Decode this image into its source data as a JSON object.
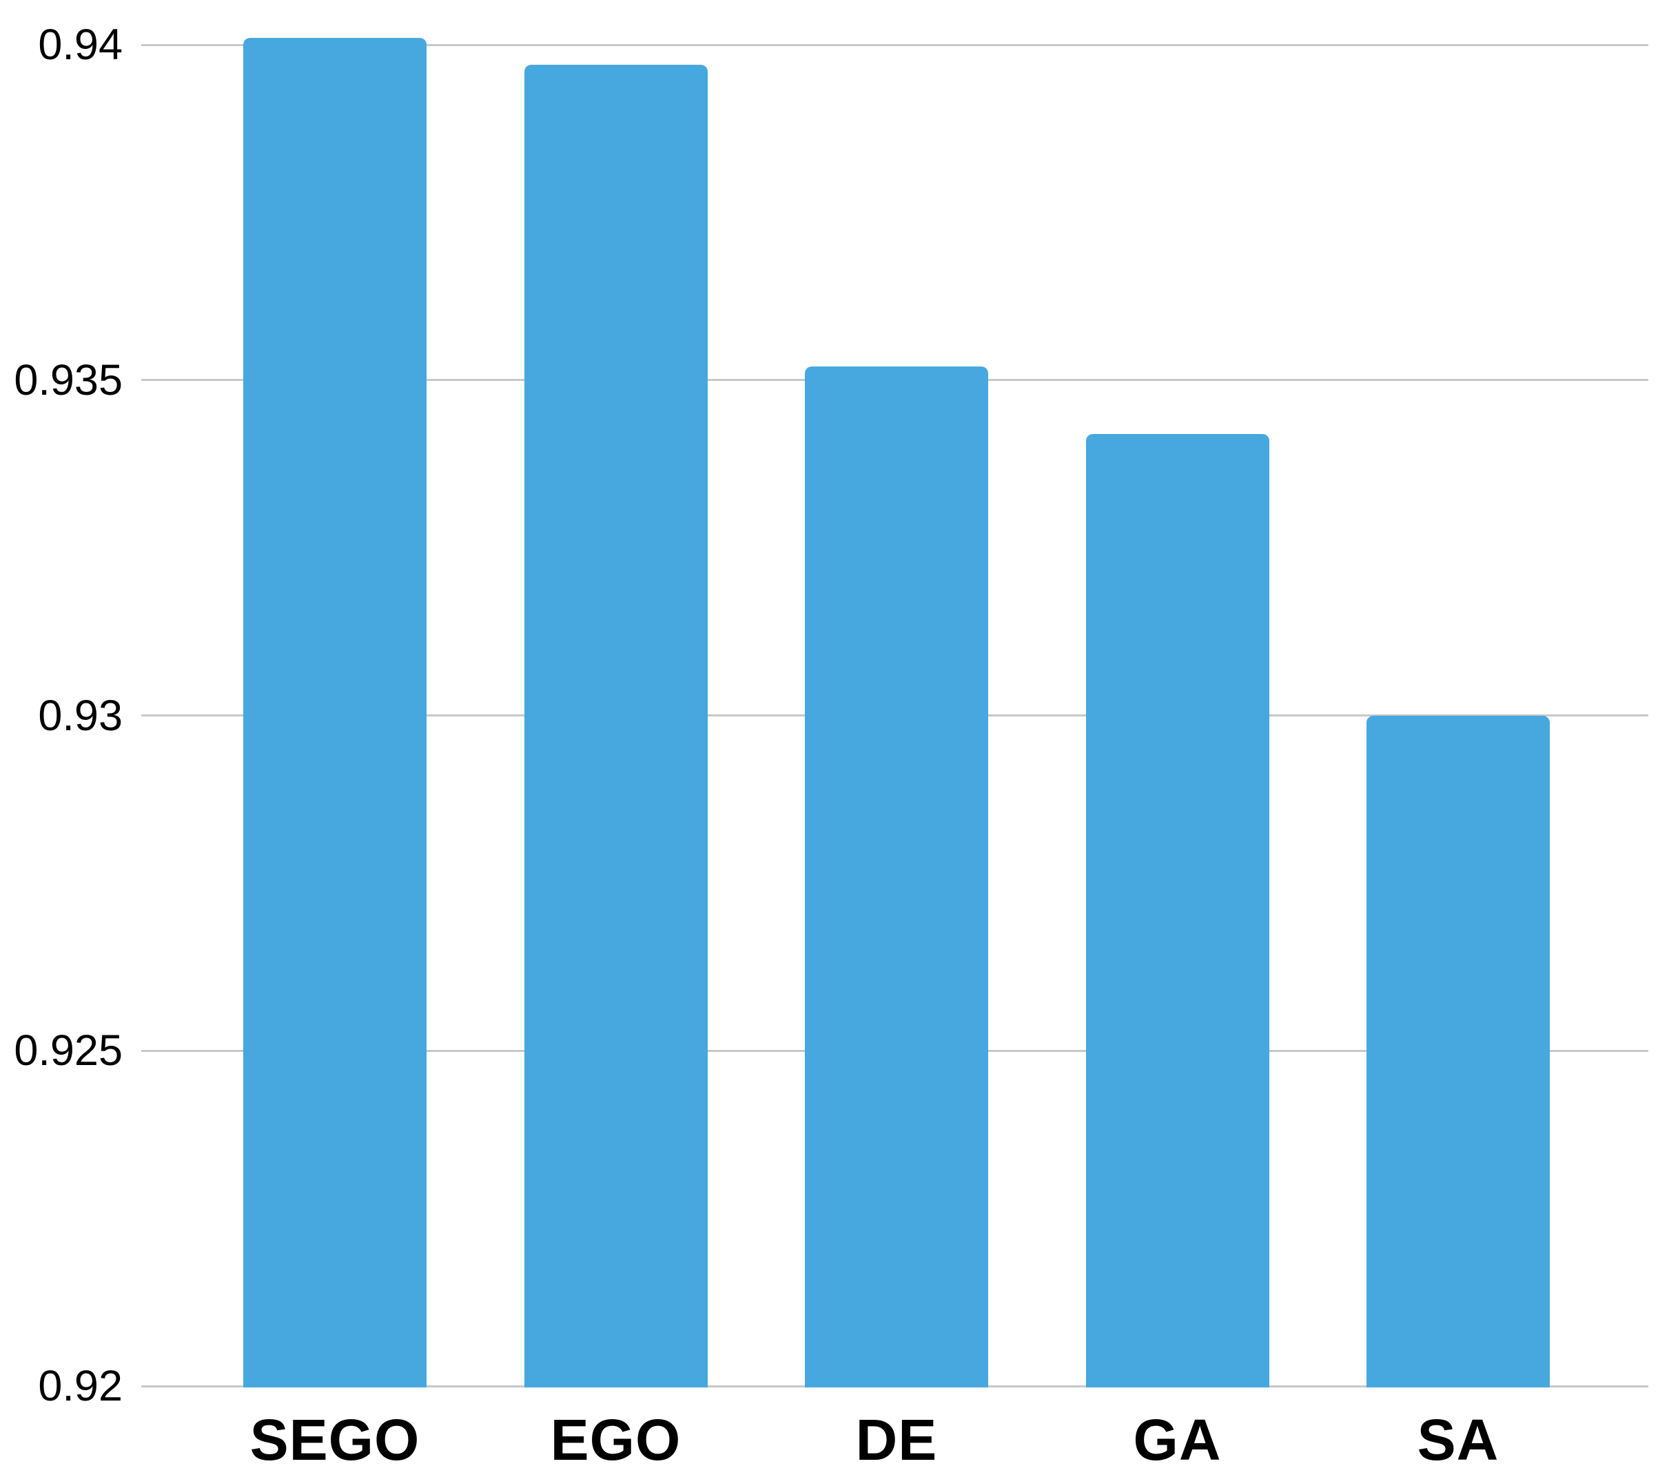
{
  "chart_data": {
    "type": "bar",
    "title": "",
    "xlabel": "",
    "ylabel": "",
    "categories": [
      "SEGO",
      "EGO",
      "DE",
      "GA",
      "SA"
    ],
    "values": [
      0.9401,
      0.9397,
      0.9352,
      0.9342,
      0.93
    ],
    "yticks": [
      0.92,
      0.925,
      0.93,
      0.935,
      0.94
    ],
    "ytick_labels": [
      "0.92",
      "0.925",
      "0.93",
      "0.935",
      "0.94"
    ],
    "ylim": [
      0.92,
      0.9401
    ],
    "grid": true,
    "legend": false,
    "bar_color": "#46a8de",
    "gridline_color": "#c8c8c8",
    "text_color": "#000000",
    "background_color": "#ffffff"
  }
}
